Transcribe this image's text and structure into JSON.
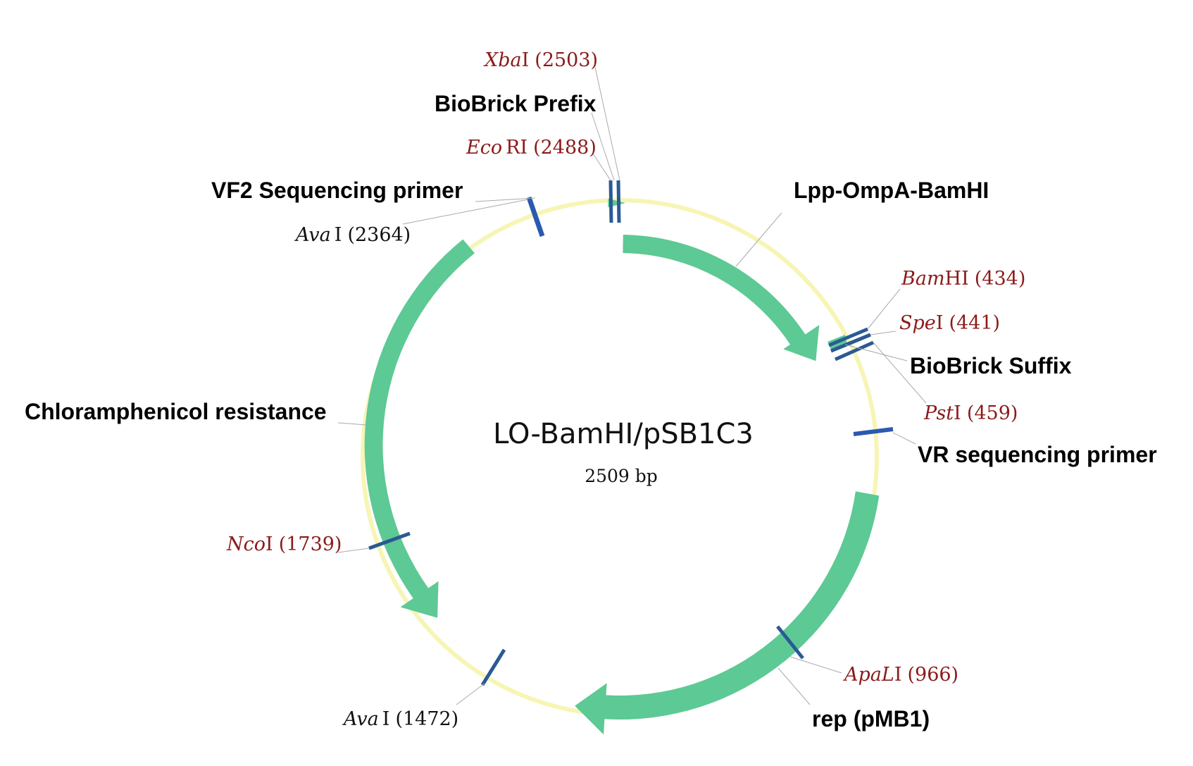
{
  "plasmid": {
    "name": "LO-BamHI/pSB1C3",
    "size_label": "2509 bp"
  },
  "colors": {
    "backbone": "#f6f5b4",
    "feature": "#5dc994",
    "site_tick": "#2a5a94",
    "primer": "#2a5ab0",
    "enzyme_unique": "#8b1a1a",
    "enzyme_multi": "#111111"
  },
  "features": [
    {
      "id": "lpp",
      "label": "Lpp-OmpA-BamHI"
    },
    {
      "id": "rep",
      "label": "rep (pMB1)"
    },
    {
      "id": "cmr",
      "label": "Chloramphenicol resistance"
    },
    {
      "id": "prefix",
      "label": "BioBrick Prefix"
    },
    {
      "id": "suffix",
      "label": "BioBrick Suffix"
    },
    {
      "id": "vf2",
      "label": "VF2 Sequencing primer"
    },
    {
      "id": "vr",
      "label": "VR sequencing primer"
    }
  ],
  "sites": [
    {
      "id": "xbai",
      "name": "Xba",
      "suffix": "I",
      "position": "(2503)",
      "unique": true
    },
    {
      "id": "ecori",
      "name": "Eco",
      "suffix": "RI",
      "position": "(2488)",
      "unique": true
    },
    {
      "id": "ava2364",
      "name": "Ava",
      "suffix": "I",
      "position": "(2364)",
      "unique": false
    },
    {
      "id": "bamhi",
      "name": "Bam",
      "suffix": "HI",
      "position": "(434)",
      "unique": true
    },
    {
      "id": "spei",
      "name": "Spe",
      "suffix": "I",
      "position": "(441)",
      "unique": true
    },
    {
      "id": "psti",
      "name": "Pst",
      "suffix": "I",
      "position": "(459)",
      "unique": true
    },
    {
      "id": "apali",
      "name": "ApaL",
      "suffix": "I",
      "position": "(966)",
      "unique": true
    },
    {
      "id": "ava1472",
      "name": "Ava",
      "suffix": "I",
      "position": "(1472)",
      "unique": false
    },
    {
      "id": "ncoi",
      "name": "Nco",
      "suffix": "I",
      "position": "(1739)",
      "unique": true
    }
  ]
}
